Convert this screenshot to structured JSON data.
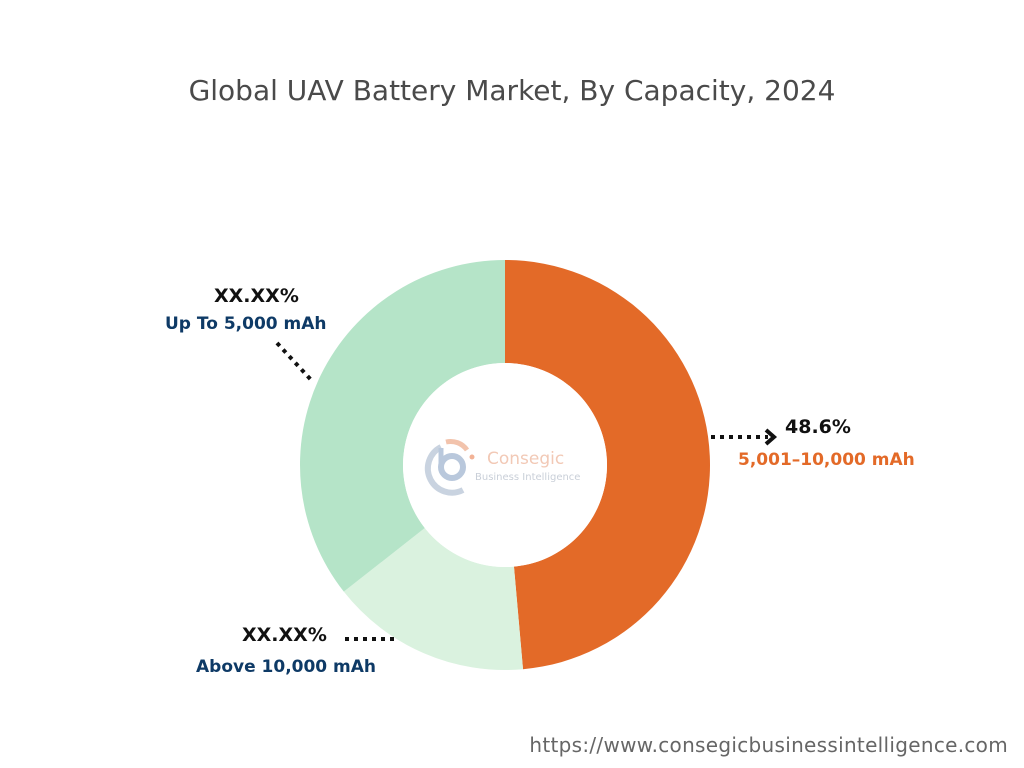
{
  "chart_data": {
    "type": "pie",
    "variant": "donut",
    "title": "Global UAV Battery Market, By Capacity, 2024",
    "start_angle": "top, clockwise",
    "slices": [
      {
        "label": "5,001–10,000 mAh",
        "value_label": "48.6%",
        "value": 48.6,
        "color": "#E36A28",
        "label_color": "#E36A28"
      },
      {
        "label": "Above 10,000 mAh",
        "value_label": "XX.XX%",
        "value": 15.8,
        "color": "#DAF2DF",
        "label_color": "#0E3A66"
      },
      {
        "label": "Up To 5,000 mAh",
        "value_label": "XX.XX%",
        "value": 35.6,
        "color": "#B5E4C8",
        "label_color": "#0E3A66"
      }
    ]
  },
  "logo": {
    "name": "Consegic",
    "tagline": "Business Intelligence"
  },
  "footer": {
    "url": "https://www.consegicbusinessintelligence.com"
  }
}
